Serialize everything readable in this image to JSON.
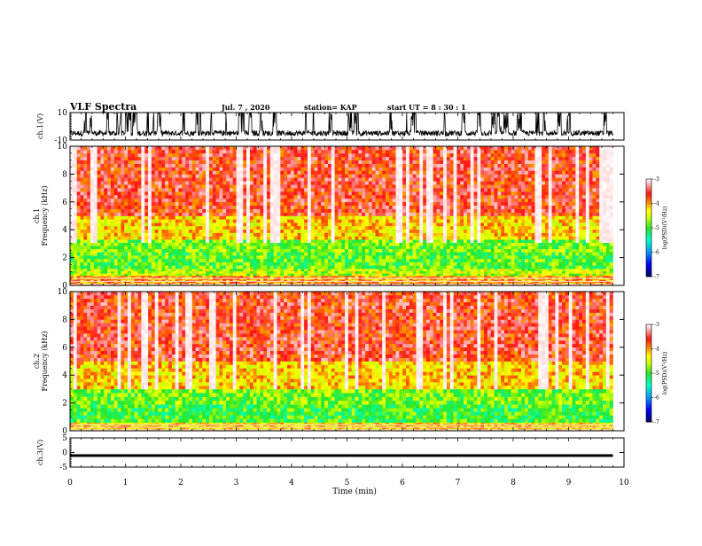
{
  "header": {
    "title": "VLF Spectra",
    "date": "Jul. 7 , 2020",
    "station": "station= KAP",
    "start": "start UT = 8 : 30 : 1"
  },
  "chart_data": [
    {
      "type": "line",
      "name": "ch1-waveform",
      "ylabel": "ch.1(V)",
      "ylim": [
        -10,
        10
      ],
      "yticks": [
        "10",
        "-10"
      ],
      "xlim": [
        0,
        10
      ],
      "data_end": 9.8,
      "style": "dense noisy trace near -5 V with frequent bursts to +10 V"
    },
    {
      "type": "heatmap",
      "name": "ch1-spectrogram",
      "ylabel": "ch.1\nFrequency (kHz)",
      "ylim": [
        0,
        10
      ],
      "yticks": [
        "0",
        "2",
        "4",
        "6",
        "8",
        "10"
      ],
      "xlim": [
        0,
        10
      ],
      "data_end": 9.8,
      "colorbar": {
        "label": "log(PSD)(V²/Hz)",
        "range": [
          -7,
          -3
        ],
        "ticks": [
          "-3",
          "-4",
          "-5",
          "-6",
          "-7"
        ]
      },
      "bands": [
        {
          "f": [
            0.0,
            0.7
          ],
          "level": -4.0,
          "striated": true
        },
        {
          "f": [
            0.7,
            1.2
          ],
          "level": -4.6
        },
        {
          "f": [
            1.2,
            2.4
          ],
          "level": -4.9
        },
        {
          "f": [
            2.4,
            3.3
          ],
          "level": -4.8
        },
        {
          "f": [
            3.3,
            5.0
          ],
          "level": -4.2
        },
        {
          "f": [
            5.0,
            10.0
          ],
          "level": -3.6
        }
      ]
    },
    {
      "type": "heatmap",
      "name": "ch2-spectrogram",
      "ylabel": "ch.2\nFrequency (kHz)",
      "ylim": [
        0,
        10
      ],
      "yticks": [
        "0",
        "2",
        "4",
        "6",
        "8",
        "10"
      ],
      "xlim": [
        0,
        10
      ],
      "data_end": 9.8,
      "colorbar": {
        "label": "log(PSD)(V²/Hz)",
        "range": [
          -7,
          -3
        ],
        "ticks": [
          "-3",
          "-4",
          "-5",
          "-6",
          "-7"
        ]
      },
      "bands": [
        {
          "f": [
            0.0,
            0.6
          ],
          "level": -4.2,
          "striated": true
        },
        {
          "f": [
            0.6,
            1.9
          ],
          "level": -5.0
        },
        {
          "f": [
            1.9,
            3.0
          ],
          "level": -4.8
        },
        {
          "f": [
            3.0,
            5.0
          ],
          "level": -4.2
        },
        {
          "f": [
            5.0,
            10.0
          ],
          "level": -3.6
        }
      ]
    },
    {
      "type": "line",
      "name": "ch3-waveform",
      "ylabel": "ch.3(V)",
      "ylim": [
        -5,
        5
      ],
      "yticks": [
        "5",
        "0",
        "-5"
      ],
      "xlim": [
        0,
        10
      ],
      "data_end": 9.8,
      "style": "thick near-constant band around -1 V"
    }
  ],
  "xaxis": {
    "label": "Time (min)",
    "ticks": [
      "0",
      "1",
      "2",
      "3",
      "4",
      "5",
      "6",
      "7",
      "8",
      "9",
      "10"
    ]
  }
}
